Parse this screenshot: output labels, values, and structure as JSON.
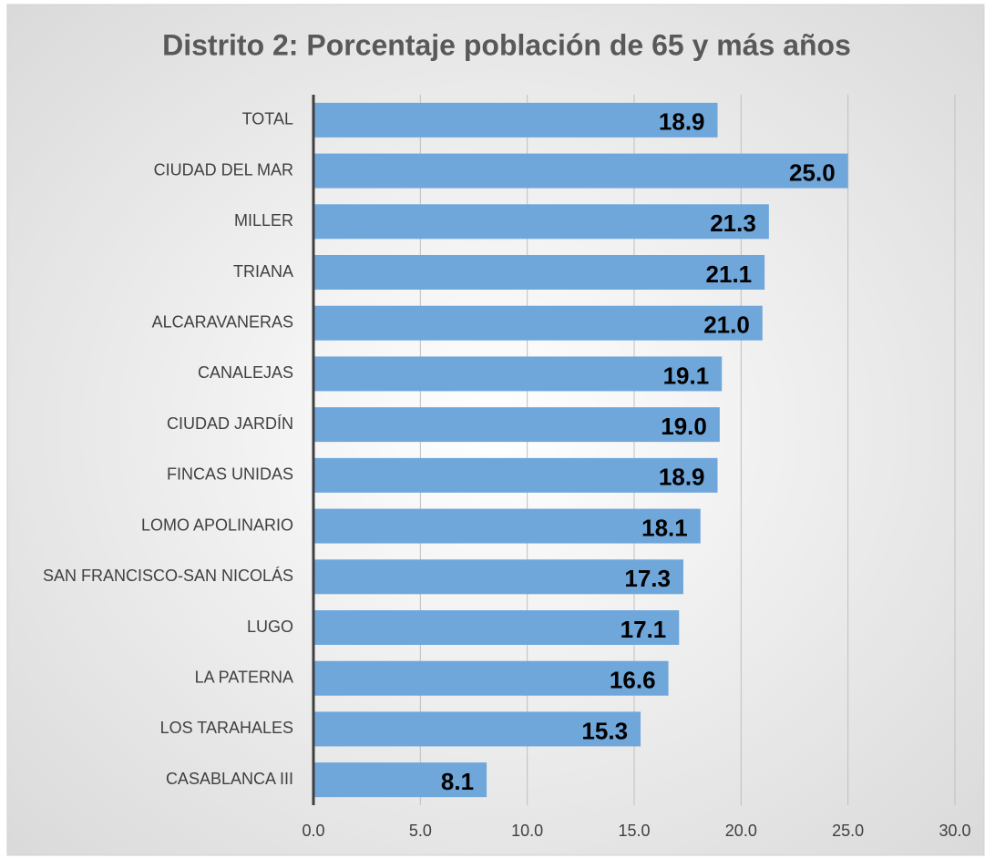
{
  "chart_data": {
    "type": "bar",
    "orientation": "horizontal",
    "title": "Distrito 2: Porcentaje población de 65 y más años",
    "categories": [
      "TOTAL",
      "CIUDAD DEL MAR",
      "MILLER",
      "TRIANA",
      "ALCARAVANERAS",
      "CANALEJAS",
      "CIUDAD JARDÍN",
      "FINCAS UNIDAS",
      "LOMO APOLINARIO",
      "SAN FRANCISCO-SAN NICOLÁS",
      "LUGO",
      "LA PATERNA",
      "LOS TARAHALES",
      "CASABLANCA III"
    ],
    "values": [
      18.9,
      25.0,
      21.3,
      21.1,
      21.0,
      19.1,
      19.0,
      18.9,
      18.1,
      17.3,
      17.1,
      16.6,
      15.3,
      8.1
    ],
    "value_labels": [
      "18.9",
      "25.0",
      "21.3",
      "21.1",
      "21.0",
      "19.1",
      "19.0",
      "18.9",
      "18.1",
      "17.3",
      "17.1",
      "16.6",
      "15.3",
      "8.1"
    ],
    "color": "#6fa7db",
    "xlim": [
      0,
      30
    ],
    "xticks": [
      {
        "value": 0,
        "label": "0.0"
      },
      {
        "value": 5,
        "label": "5.0"
      },
      {
        "value": 10,
        "label": "10.0"
      },
      {
        "value": 15,
        "label": "15.0"
      },
      {
        "value": 20,
        "label": "20.0"
      },
      {
        "value": 25,
        "label": "25.0"
      },
      {
        "value": 30,
        "label": "30.0"
      }
    ],
    "grid": true
  }
}
